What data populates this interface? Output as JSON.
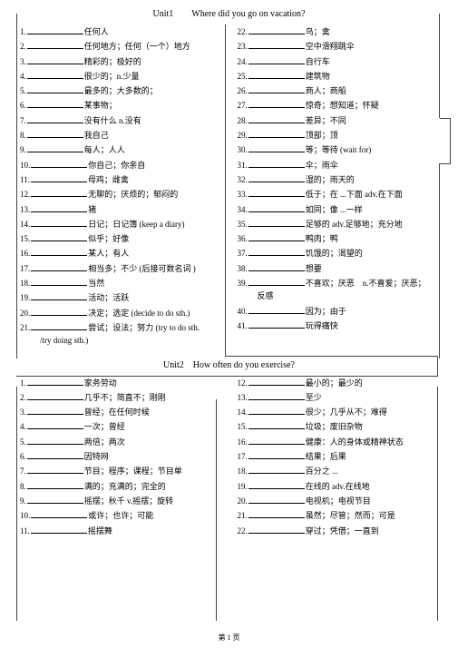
{
  "unit1": {
    "title": "Unit1　　Where did you go on vacation?",
    "left": [
      {
        "n": "1.",
        "t": "任何人"
      },
      {
        "n": "2.",
        "t": "任何地方；任何（一个）地方"
      },
      {
        "n": "3.",
        "t": "精彩的；极好的"
      },
      {
        "n": "4.",
        "t": "很少的；n.少量"
      },
      {
        "n": "5.",
        "t": "最多的；大多数的；"
      },
      {
        "n": "6.",
        "t": "某事物；"
      },
      {
        "n": "7.",
        "t": "没有什么  n.没有"
      },
      {
        "n": "8.",
        "t": "我自己"
      },
      {
        "n": "9.",
        "t": "每人；人人"
      },
      {
        "n": "10.",
        "t": "你自己；你亲自"
      },
      {
        "n": "11.",
        "t": "母鸡；雌禽"
      },
      {
        "n": "12.",
        "t": "无聊的；厌烦的；郁闷的"
      },
      {
        "n": "13.",
        "t": "猪"
      },
      {
        "n": "14.",
        "t": "日记；日记簿 (keep a diary)"
      },
      {
        "n": "15.",
        "t": "似乎；好像"
      },
      {
        "n": "16.",
        "t": "某人；有人"
      },
      {
        "n": "17.",
        "t": "相当多；不少 (后接可数名词 )"
      },
      {
        "n": "18.",
        "t": "当然"
      },
      {
        "n": "19.",
        "t": "活动；活跃"
      },
      {
        "n": "20.",
        "t": "决定；选定 (decide to do sth.)"
      },
      {
        "n": "21.",
        "t": "尝试；设法；努力  (try to do sth. /try doing sth.)",
        "cont": true
      }
    ],
    "right": [
      {
        "n": "22.",
        "t": "鸟；禽"
      },
      {
        "n": "23.",
        "t": "空中滑翔跳伞"
      },
      {
        "n": "24.",
        "t": "自行车"
      },
      {
        "n": "25.",
        "t": "建筑物"
      },
      {
        "n": "26.",
        "t": "商人；商船"
      },
      {
        "n": "27.",
        "t": "惊奇；想知道；怀疑"
      },
      {
        "n": "28.",
        "t": "差异；不同"
      },
      {
        "n": "29.",
        "t": "顶部；顶"
      },
      {
        "n": "30.",
        "t": "等；等待 (wait for)"
      },
      {
        "n": "31.",
        "t": "伞；雨伞"
      },
      {
        "n": "32.",
        "t": "湿的；雨天的"
      },
      {
        "n": "33.",
        "t": "低于；在 ...下面 adv.在下面"
      },
      {
        "n": "34.",
        "t": "如同；像 ...一样"
      },
      {
        "n": "35.",
        "t": "足够的 adv.足够地；充分地"
      },
      {
        "n": "36.",
        "t": "鸭肉；鸭"
      },
      {
        "n": "37.",
        "t": "饥饿的；渴望的"
      },
      {
        "n": "38.",
        "t": "想要"
      },
      {
        "n": "39.",
        "t": "不喜欢；厌恶　n.不喜爱；厌恶；反感",
        "cont": true
      },
      {
        "n": "40.",
        "t": "因为；由于"
      },
      {
        "n": "41.",
        "t": "玩得痛快"
      }
    ]
  },
  "unit2": {
    "title": "Unit2　How often do you exercise?",
    "left": [
      {
        "n": "1.",
        "t": "家务劳动"
      },
      {
        "n": "2.",
        "t": "几乎不；简直不；刚刚"
      },
      {
        "n": "3.",
        "t": "曾经；在任何时候"
      },
      {
        "n": "4.",
        "t": "一次；曾经"
      },
      {
        "n": "5.",
        "t": "两倍；两次"
      },
      {
        "n": "6.",
        "t": "因特网"
      },
      {
        "n": "7.",
        "t": "节目；程序；课程；节目单"
      },
      {
        "n": "8.",
        "t": "满的；充满的；完全的"
      },
      {
        "n": "9.",
        "t": "摇摆；秋千  v.摇摆；旋转"
      },
      {
        "n": "10.",
        "t": "或许；也许；可能"
      },
      {
        "n": "11.",
        "t": "摇摆舞"
      }
    ],
    "right": [
      {
        "n": "12.",
        "t": "最小的；最少的"
      },
      {
        "n": "13.",
        "t": "至少"
      },
      {
        "n": "14.",
        "t": "很少；几乎从不；难得"
      },
      {
        "n": "15.",
        "t": "垃圾；废旧杂物"
      },
      {
        "n": "16.",
        "t": "健康：人的身体或精神状态"
      },
      {
        "n": "17.",
        "t": "结果；后果"
      },
      {
        "n": "18.",
        "t": "百分之 ..."
      },
      {
        "n": "19.",
        "t": "在线的 adv.在线地"
      },
      {
        "n": "20.",
        "t": "电视机；电视节目"
      },
      {
        "n": "21.",
        "t": "虽然；尽管；然而；可是"
      },
      {
        "n": "22.",
        "t": "穿过；凭借；一直到"
      }
    ]
  },
  "pagelabel": "第 1 页"
}
